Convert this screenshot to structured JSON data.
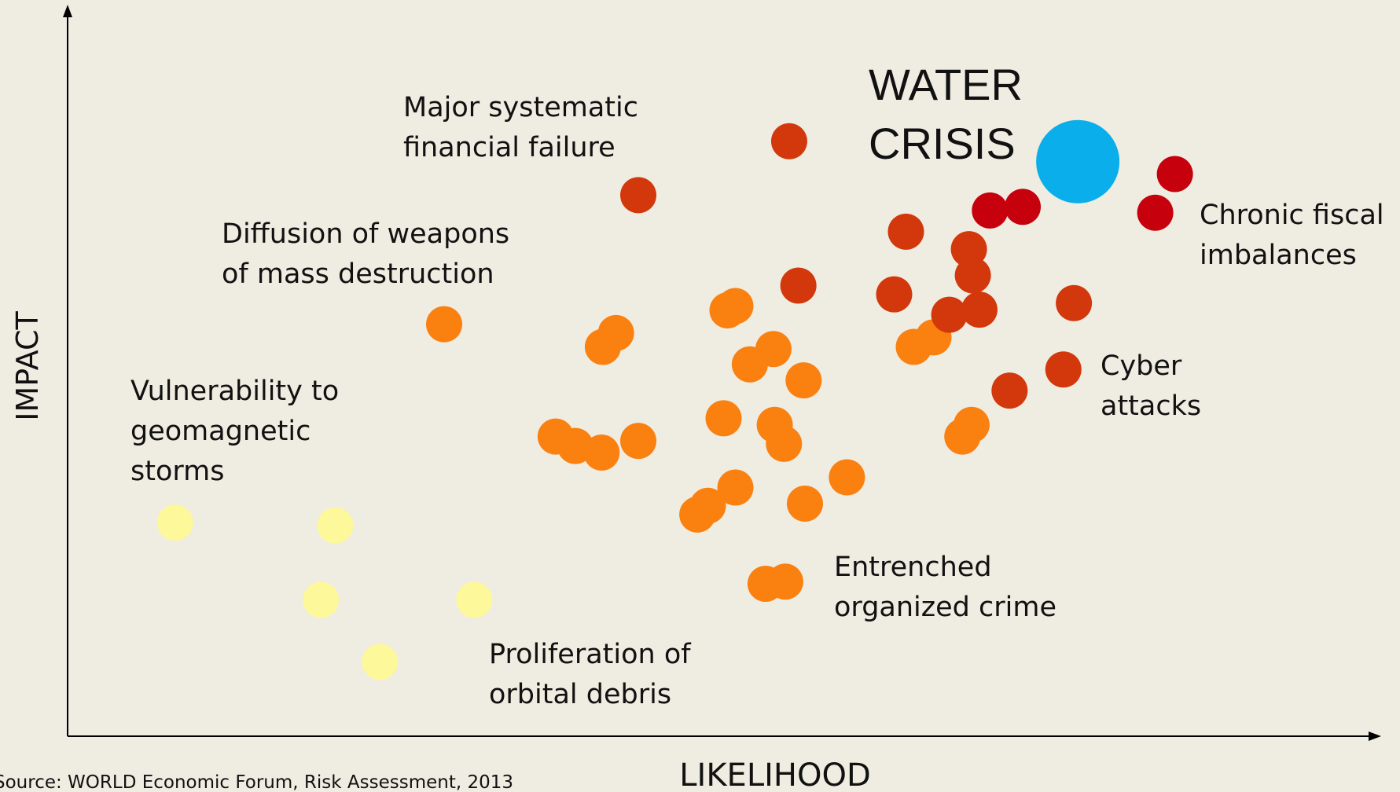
{
  "chart_data": {
    "type": "scatter",
    "xlabel": "LIKELIHOOD",
    "ylabel": "IMPACT",
    "source": "Source: WORLD Economic Forum, Risk Assessment, 2013",
    "xlim": [
      0,
      100
    ],
    "ylim": [
      0,
      100
    ],
    "series": [
      {
        "color": "#fdf89a",
        "x": [
          8.2,
          20.4,
          19.3,
          31.0,
          23.8
        ],
        "values": [
          29.3,
          28.9,
          18.7,
          18.7,
          10.2
        ]
      },
      {
        "color": "#fa8010",
        "x": [
          28.7,
          40.8,
          41.8,
          50.3,
          50.9,
          53.8,
          52.0,
          56.1,
          37.2,
          38.7,
          40.7,
          43.5,
          50.0,
          53.9,
          54.6,
          59.4,
          50.9,
          48.0,
          48.8,
          56.2,
          53.2,
          54.7,
          64.5,
          66.0,
          68.2,
          68.9
        ],
        "values": [
          56.5,
          53.4,
          55.3,
          58.4,
          59.0,
          53.1,
          51.0,
          48.8,
          41.1,
          39.8,
          38.9,
          40.5,
          43.6,
          42.7,
          40.1,
          35.5,
          34.1,
          30.4,
          31.6,
          31.9,
          20.9,
          21.2,
          53.4,
          54.7,
          41.1,
          42.7
        ]
      },
      {
        "color": "#d2380b",
        "x": [
          55.0,
          43.5,
          63.9,
          68.7,
          69.0,
          55.7,
          63.0,
          69.5,
          76.7,
          67.2,
          71.8,
          75.9
        ],
        "values": [
          81.6,
          74.2,
          69.2,
          66.8,
          63.2,
          61.8,
          60.6,
          58.5,
          59.4,
          57.8,
          47.4,
          50.3
        ]
      },
      {
        "color": "#c6000d",
        "x": [
          70.3,
          72.8,
          82.9,
          84.4
        ],
        "values": [
          72.1,
          72.6,
          71.8,
          77.1
        ]
      },
      {
        "color": "#0aaeea",
        "x": [
          77.0
        ],
        "values": [
          78.8
        ]
      }
    ],
    "annotations": [
      {
        "lines": [
          "WATER",
          "CRISIS"
        ]
      },
      {
        "lines": [
          "Major systematic",
          "financial failure"
        ]
      },
      {
        "lines": [
          "Diffusion of weapons",
          "of mass destruction"
        ]
      },
      {
        "lines": [
          "Vulnerability to",
          "geomagnetic",
          "storms"
        ]
      },
      {
        "lines": [
          "Proliferation of",
          "orbital debris"
        ]
      },
      {
        "lines": [
          "Entrenched",
          "organized crime"
        ]
      },
      {
        "lines": [
          "Cyber",
          "attacks"
        ]
      },
      {
        "lines": [
          "Chronic fiscal",
          "imbalances"
        ]
      }
    ]
  }
}
